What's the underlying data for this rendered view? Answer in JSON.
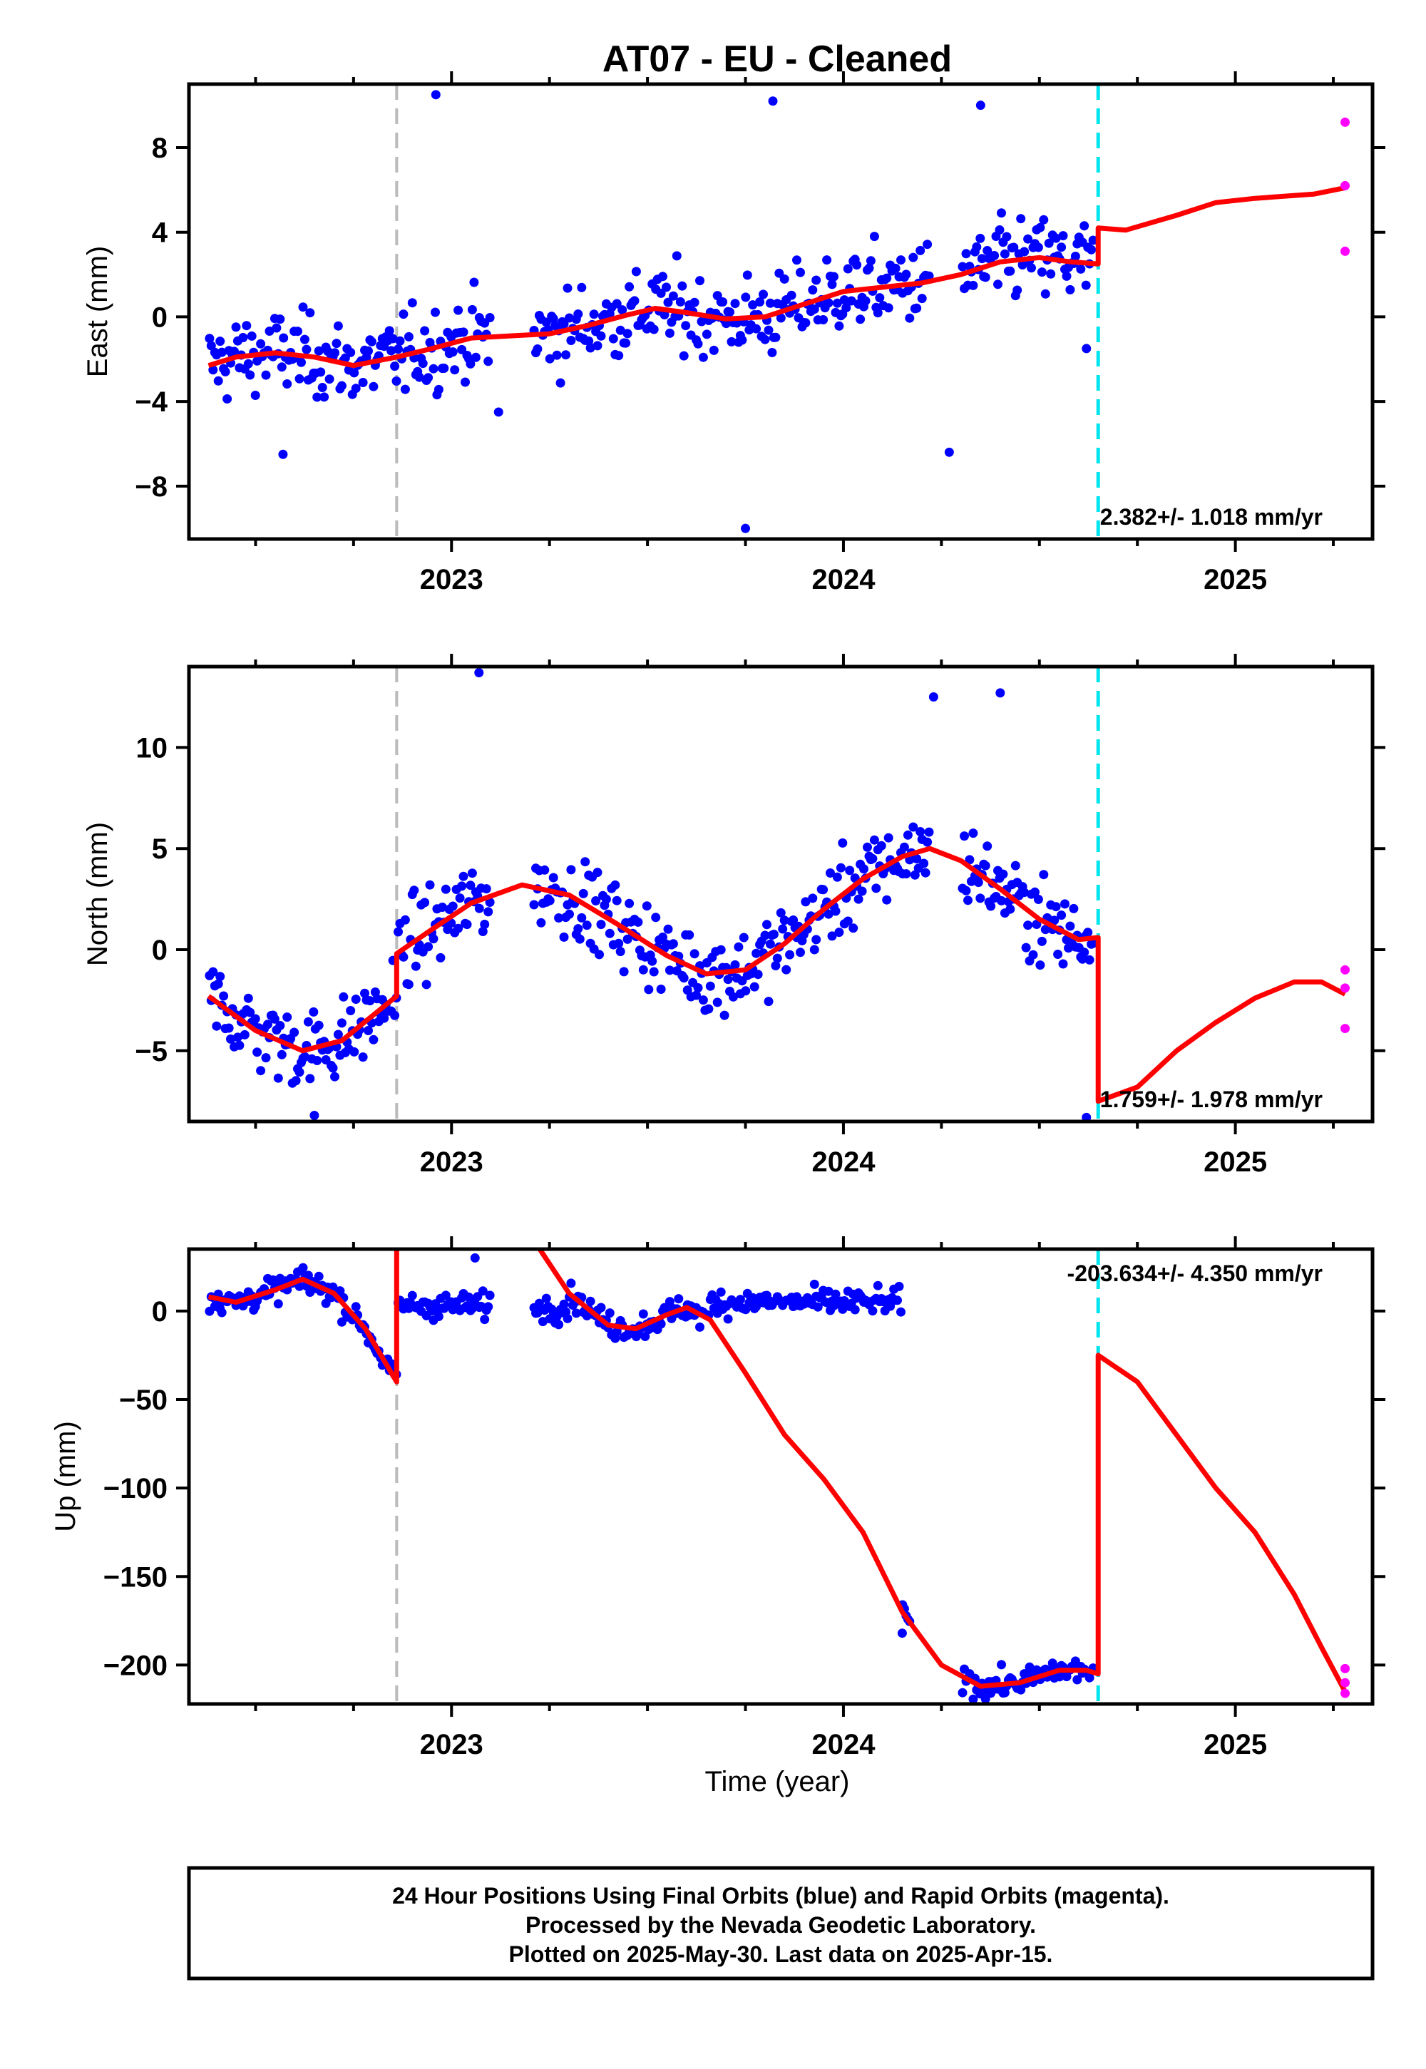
{
  "title": "AT07  - EU - Cleaned",
  "xlabel": "Time (year)",
  "footer": [
    "24 Hour Positions Using Final Orbits (blue) and Rapid Orbits (magenta).",
    "Processed by the Nevada Geodetic Laboratory.",
    "Plotted on 2025-May-30. Last data on 2025-Apr-15."
  ],
  "colors": {
    "final_orbits": "#0000ff",
    "rapid_orbits": "#ff00ff",
    "model": "#ff0000",
    "equipment_change": "#bbbbbb",
    "earthquake_offset": "#00e5ee",
    "frame": "#000000"
  },
  "chart_data": [
    {
      "type": "scatter",
      "component": "east",
      "ylabel": "East (mm)",
      "rate": "2.382+/- 1.018 mm/yr",
      "xlim": [
        2022.33,
        2025.35
      ],
      "ylim": [
        -10.5,
        11
      ],
      "yticks": [
        -8,
        -4,
        0,
        4,
        8
      ],
      "xticks": [
        "2023",
        "2024",
        "2025"
      ],
      "vlines": {
        "gray": 2022.86,
        "cyan": 2024.65
      },
      "model": [
        [
          2022.38,
          -2.3
        ],
        [
          2022.45,
          -1.9
        ],
        [
          2022.55,
          -1.7
        ],
        [
          2022.65,
          -1.9
        ],
        [
          2022.75,
          -2.3
        ],
        [
          2022.86,
          -1.9
        ],
        [
          2022.95,
          -1.5
        ],
        [
          2023.05,
          -1.0
        ],
        [
          2023.15,
          -0.9
        ],
        [
          2023.25,
          -0.8
        ],
        [
          2023.35,
          -0.4
        ],
        [
          2023.45,
          0.1
        ],
        [
          2023.52,
          0.4
        ],
        [
          2023.6,
          0.2
        ],
        [
          2023.7,
          -0.1
        ],
        [
          2023.8,
          0.0
        ],
        [
          2023.9,
          0.6
        ],
        [
          2024.0,
          1.2
        ],
        [
          2024.1,
          1.4
        ],
        [
          2024.2,
          1.6
        ],
        [
          2024.3,
          2.0
        ],
        [
          2024.4,
          2.6
        ],
        [
          2024.5,
          2.8
        ],
        [
          2024.58,
          2.6
        ],
        [
          2024.65,
          2.5
        ],
        [
          2024.65,
          4.2
        ],
        [
          2024.72,
          4.1
        ],
        [
          2024.85,
          4.8
        ],
        [
          2024.95,
          5.4
        ],
        [
          2025.05,
          5.6
        ],
        [
          2025.2,
          5.8
        ],
        [
          2025.28,
          6.1
        ]
      ],
      "outliers": [
        [
          2022.96,
          10.5
        ],
        [
          2023.12,
          -4.5
        ],
        [
          2023.75,
          -10
        ],
        [
          2023.82,
          10.2
        ],
        [
          2024.27,
          -6.4
        ],
        [
          2024.35,
          10
        ],
        [
          2024.62,
          -1.5
        ],
        [
          2022.57,
          -6.5
        ]
      ],
      "rapid": [
        [
          2025.28,
          9.2
        ],
        [
          2025.28,
          6.2
        ],
        [
          2025.28,
          3.1
        ]
      ]
    },
    {
      "type": "scatter",
      "component": "north",
      "ylabel": "North (mm)",
      "rate": "1.759+/- 1.978 mm/yr",
      "xlim": [
        2022.33,
        2025.35
      ],
      "ylim": [
        -8.5,
        14
      ],
      "yticks": [
        -5,
        0,
        5,
        10
      ],
      "xticks": [
        "2023",
        "2024",
        "2025"
      ],
      "vlines": {
        "gray": 2022.86,
        "cyan": 2024.65
      },
      "model": [
        [
          2022.38,
          -2.3
        ],
        [
          2022.5,
          -4.0
        ],
        [
          2022.62,
          -5.0
        ],
        [
          2022.72,
          -4.5
        ],
        [
          2022.86,
          -2.3
        ],
        [
          2022.86,
          -0.2
        ],
        [
          2022.95,
          1.0
        ],
        [
          2023.05,
          2.3
        ],
        [
          2023.18,
          3.2
        ],
        [
          2023.3,
          2.7
        ],
        [
          2023.42,
          1.3
        ],
        [
          2023.55,
          -0.3
        ],
        [
          2023.65,
          -1.2
        ],
        [
          2023.75,
          -1.0
        ],
        [
          2023.85,
          0.3
        ],
        [
          2023.95,
          2.0
        ],
        [
          2024.05,
          3.5
        ],
        [
          2024.15,
          4.6
        ],
        [
          2024.22,
          5.0
        ],
        [
          2024.3,
          4.4
        ],
        [
          2024.4,
          3.0
        ],
        [
          2024.5,
          1.5
        ],
        [
          2024.6,
          0.5
        ],
        [
          2024.65,
          0.6
        ],
        [
          2024.65,
          -7.5
        ],
        [
          2024.75,
          -6.8
        ],
        [
          2024.85,
          -5.0
        ],
        [
          2024.95,
          -3.6
        ],
        [
          2025.05,
          -2.4
        ],
        [
          2025.15,
          -1.6
        ],
        [
          2025.22,
          -1.6
        ],
        [
          2025.28,
          -2.2
        ]
      ],
      "outliers": [
        [
          2023.07,
          13.7
        ],
        [
          2024.23,
          12.5
        ],
        [
          2024.4,
          12.7
        ],
        [
          2022.65,
          -8.2
        ],
        [
          2024.62,
          -8.3
        ]
      ],
      "rapid": [
        [
          2025.28,
          -1.0
        ],
        [
          2025.28,
          -1.9
        ],
        [
          2025.28,
          -3.9
        ]
      ]
    },
    {
      "type": "scatter",
      "component": "up",
      "ylabel": "Up (mm)",
      "rate": "-203.634+/- 4.350 mm/yr",
      "xlim": [
        2022.33,
        2025.35
      ],
      "ylim": [
        -222,
        35
      ],
      "yticks": [
        -200,
        -150,
        -100,
        -50,
        0
      ],
      "xticks": [
        "2023",
        "2024",
        "2025"
      ],
      "vlines": {
        "gray": 2022.86,
        "cyan": 2024.65
      },
      "model": [
        [
          2022.38,
          8
        ],
        [
          2022.45,
          5
        ],
        [
          2022.55,
          12
        ],
        [
          2022.62,
          18
        ],
        [
          2022.7,
          10
        ],
        [
          2022.78,
          -10
        ],
        [
          2022.86,
          -40
        ],
        [
          2022.86,
          40
        ],
        [
          2023.21,
          40
        ],
        [
          2023.3,
          10
        ],
        [
          2023.4,
          -8
        ],
        [
          2023.47,
          -10
        ],
        [
          2023.55,
          -2
        ],
        [
          2023.6,
          2
        ],
        [
          2023.66,
          -5
        ],
        [
          2023.75,
          -35
        ],
        [
          2023.85,
          -70
        ],
        [
          2023.95,
          -95
        ],
        [
          2024.05,
          -125
        ],
        [
          2024.15,
          -170
        ],
        [
          2024.25,
          -200
        ],
        [
          2024.35,
          -212
        ],
        [
          2024.45,
          -210
        ],
        [
          2024.55,
          -203
        ],
        [
          2024.62,
          -203
        ],
        [
          2024.65,
          -205
        ],
        [
          2024.65,
          -25
        ],
        [
          2024.75,
          -40
        ],
        [
          2024.85,
          -70
        ],
        [
          2024.95,
          -100
        ],
        [
          2025.05,
          -125
        ],
        [
          2025.15,
          -160
        ],
        [
          2025.22,
          -190
        ],
        [
          2025.28,
          -215
        ]
      ],
      "outliers": [
        [
          2023.06,
          30
        ],
        [
          2024.15,
          -182
        ]
      ],
      "rapid": [
        [
          2025.28,
          -202
        ],
        [
          2025.28,
          -210
        ],
        [
          2025.28,
          -216
        ]
      ]
    }
  ]
}
